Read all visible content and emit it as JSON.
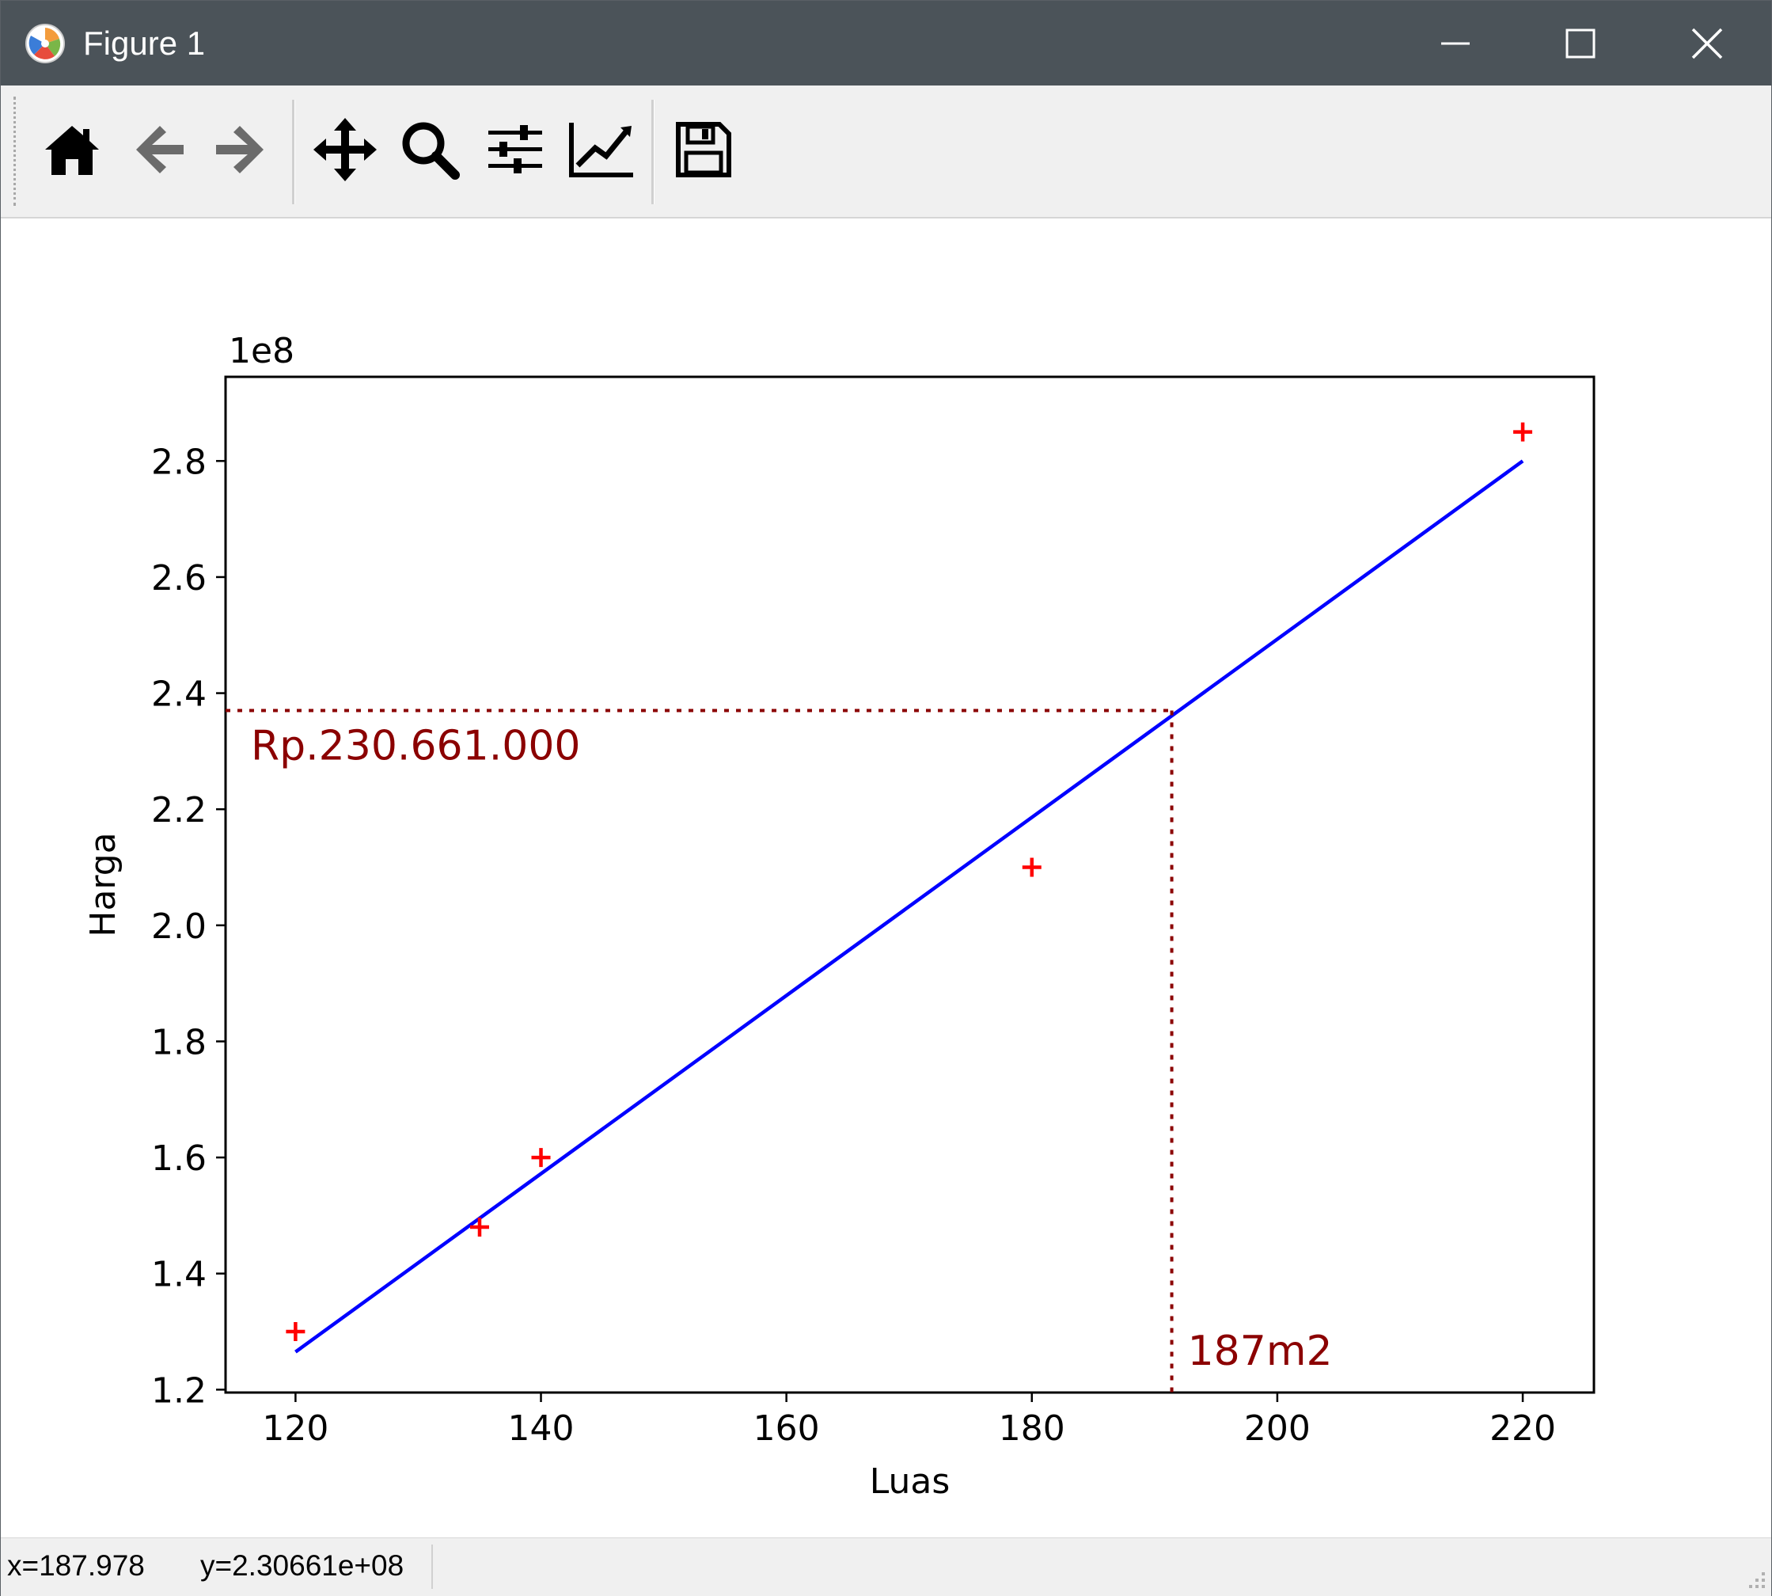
{
  "window": {
    "title": "Figure 1"
  },
  "toolbar": {
    "buttons": [
      {
        "icon": "home-icon"
      },
      {
        "icon": "back-arrow-icon"
      },
      {
        "icon": "forward-arrow-icon"
      },
      {
        "icon": "pan-move-icon"
      },
      {
        "icon": "zoom-magnifier-icon"
      },
      {
        "icon": "configure-subplots-icon"
      },
      {
        "icon": "edit-axis-line-icon"
      },
      {
        "icon": "save-disk-icon"
      }
    ]
  },
  "status": {
    "x": "x=187.978",
    "y": "y=2.30661e+08"
  },
  "colors": {
    "titlebar": "#4b5359",
    "line": "#0000ff",
    "points": "#ff0000",
    "annotation": "#8b0000"
  },
  "chart_data": {
    "type": "scatter",
    "xlabel": "Luas",
    "ylabel": "Harga",
    "offset_label": "1e8",
    "xlim": [
      114.3,
      225.8
    ],
    "ylim": [
      1.195,
      2.945
    ],
    "x_ticks": [
      120,
      140,
      160,
      180,
      200,
      220
    ],
    "y_ticks": [
      1.2,
      1.4,
      1.6,
      1.8,
      2.0,
      2.2,
      2.4,
      2.6,
      2.8
    ],
    "x_tick_labels": [
      "120",
      "140",
      "160",
      "180",
      "200",
      "220"
    ],
    "y_tick_labels": [
      "1.2",
      "1.4",
      "1.6",
      "1.8",
      "2.0",
      "2.2",
      "2.4",
      "2.6",
      "2.8"
    ],
    "series": [
      {
        "kind": "scatter",
        "marker": "+",
        "color": "#ff0000",
        "x": [
          120,
          135,
          140,
          180,
          220
        ],
        "y": [
          1.3,
          1.48,
          1.6,
          2.1,
          2.85
        ]
      },
      {
        "kind": "line",
        "color": "#0000ff",
        "x": [
          120,
          220
        ],
        "y": [
          1.265,
          2.8
        ]
      }
    ],
    "annotations": {
      "crosshair_x": 191.4,
      "crosshair_y": 2.37,
      "price_label": "Rp.230.661.000",
      "area_label": "187m2"
    }
  }
}
